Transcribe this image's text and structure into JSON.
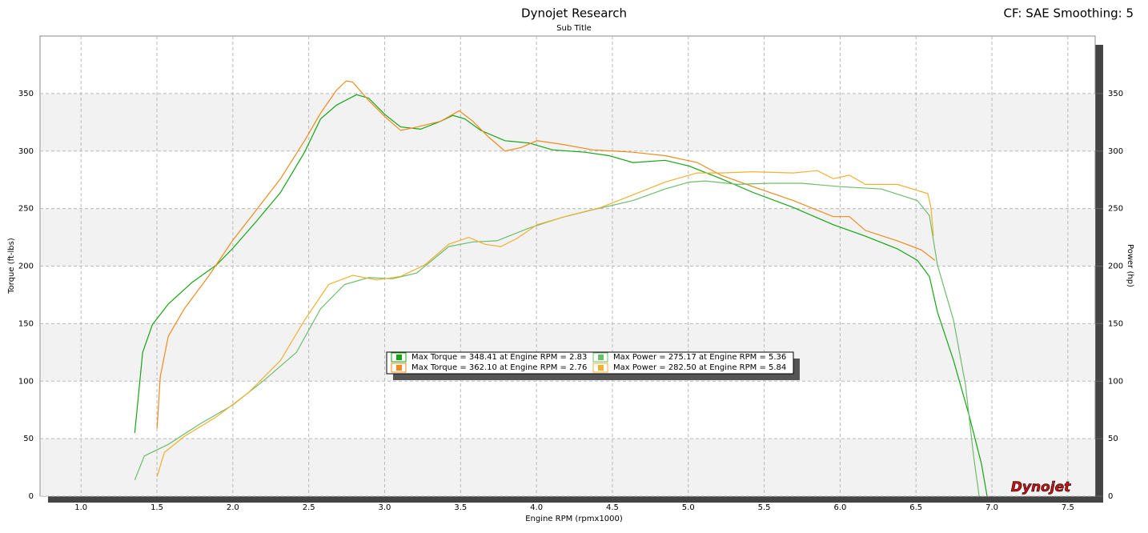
{
  "chart_data": {
    "type": "line",
    "title": "Dynojet Research",
    "subtitle": "Sub Title",
    "corner_text": "CF: SAE Smoothing: 5",
    "logo": "Dynojet",
    "x_label": "Engine RPM (rpmx1000)",
    "y_label": "Torque (ft-lbs)",
    "y2_label": "Power (hp)",
    "xlim": [
      0.73,
      7.68
    ],
    "ylim": [
      0,
      400
    ],
    "y2lim": [
      0,
      400
    ],
    "xticks": [
      {
        "value": 1,
        "label": "1.0"
      },
      1.5,
      {
        "value": 2,
        "label": "2.0"
      },
      2.5,
      {
        "value": 3,
        "label": "3.0"
      },
      3.5,
      {
        "value": 4,
        "label": "4.0"
      },
      4.5,
      {
        "value": 5,
        "label": "5.0"
      },
      5.5,
      {
        "value": 6,
        "label": "6.0"
      },
      6.5,
      {
        "value": 7,
        "label": "7.0"
      },
      7.5
    ],
    "yticks": [
      0,
      50,
      100,
      150,
      200,
      250,
      300,
      350
    ],
    "y2ticks": [
      0,
      50,
      100,
      150,
      200,
      250,
      300,
      350
    ],
    "grid": true,
    "series": [
      {
        "name": "Max Torque = 348.41 at Engine RPM = 2.83",
        "color": "#14a514",
        "x": [
          1.354,
          1.375,
          1.406,
          1.47,
          1.575,
          1.733,
          1.892,
          1.997,
          2.156,
          2.314,
          2.472,
          2.578,
          2.683,
          2.815,
          2.894,
          3.0,
          3.105,
          3.237,
          3.37,
          3.449,
          3.528,
          3.633,
          3.792,
          3.95,
          4.108,
          4.319,
          4.478,
          4.636,
          4.847,
          5.005,
          5.216,
          5.427,
          5.691,
          5.955,
          6.166,
          6.377,
          6.509,
          6.588,
          6.641,
          6.747,
          6.852,
          6.931,
          6.968
        ],
        "values": [
          55,
          83,
          125,
          149,
          167,
          186,
          201,
          215,
          239,
          264,
          299,
          328,
          340,
          349,
          346,
          332,
          321,
          319,
          326,
          331,
          328,
          318,
          309,
          307,
          301,
          299,
          296,
          290,
          292,
          287,
          276,
          264,
          251,
          236,
          226,
          215,
          205,
          191,
          160,
          118,
          69,
          28,
          0
        ]
      },
      {
        "name": "Max Torque = 362.10 at Engine RPM = 2.76",
        "color": "#f08a1c",
        "x": [
          1.501,
          1.522,
          1.575,
          1.681,
          1.839,
          1.997,
          2.156,
          2.314,
          2.472,
          2.578,
          2.683,
          2.747,
          2.789,
          2.894,
          3.0,
          3.105,
          3.216,
          3.37,
          3.491,
          3.58,
          3.686,
          3.792,
          3.897,
          4.003,
          4.161,
          4.372,
          4.636,
          4.847,
          5.058,
          5.216,
          5.427,
          5.691,
          5.955,
          6.061,
          6.166,
          6.377,
          6.536,
          6.625
        ],
        "values": [
          59,
          104,
          139,
          163,
          191,
          222,
          249,
          276,
          309,
          333,
          353,
          361,
          360,
          344,
          330,
          318,
          321,
          326,
          335,
          326,
          312,
          300,
          303,
          309,
          306,
          301,
          299,
          296,
          290,
          279,
          269,
          257,
          243,
          243,
          231,
          222,
          214,
          205
        ]
      },
      {
        "name": "Max Power = 275.17 at Engine RPM = 5.36",
        "color": "#6cbd6c",
        "axis": "y2",
        "x": [
          1.354,
          1.417,
          1.575,
          1.786,
          1.997,
          2.208,
          2.419,
          2.578,
          2.736,
          2.894,
          3.053,
          3.211,
          3.422,
          3.58,
          3.739,
          3.95,
          4.161,
          4.372,
          4.636,
          4.847,
          5.005,
          5.111,
          5.322,
          5.533,
          5.744,
          6.008,
          6.272,
          6.509,
          6.588,
          6.641,
          6.747,
          6.826,
          6.879,
          6.916
        ],
        "values": [
          14,
          35,
          45,
          63,
          79,
          101,
          125,
          163,
          184,
          190,
          189,
          194,
          217,
          221,
          222,
          233,
          242,
          249,
          257,
          267,
          273,
          274,
          271,
          272,
          272,
          269,
          267,
          257,
          244,
          201,
          153,
          97,
          35,
          0
        ]
      },
      {
        "name": "Max Power = 282.50 at Engine RPM = 5.84",
        "color": "#f0b030",
        "axis": "y2",
        "x": [
          1.501,
          1.549,
          1.681,
          1.892,
          2.103,
          2.314,
          2.472,
          2.631,
          2.789,
          2.947,
          3.105,
          3.264,
          3.422,
          3.554,
          3.66,
          3.765,
          3.871,
          4.003,
          4.214,
          4.425,
          4.636,
          4.847,
          5.058,
          5.216,
          5.427,
          5.691,
          5.85,
          5.955,
          6.061,
          6.166,
          6.377,
          6.578,
          6.599,
          6.615
        ],
        "values": [
          17,
          38,
          52,
          69,
          90,
          118,
          153,
          184,
          192,
          188,
          191,
          201,
          219,
          225,
          219,
          217,
          224,
          236,
          244,
          251,
          262,
          273,
          281,
          281,
          282,
          281,
          283,
          276,
          279,
          271,
          271,
          263,
          250,
          226
        ]
      }
    ]
  }
}
